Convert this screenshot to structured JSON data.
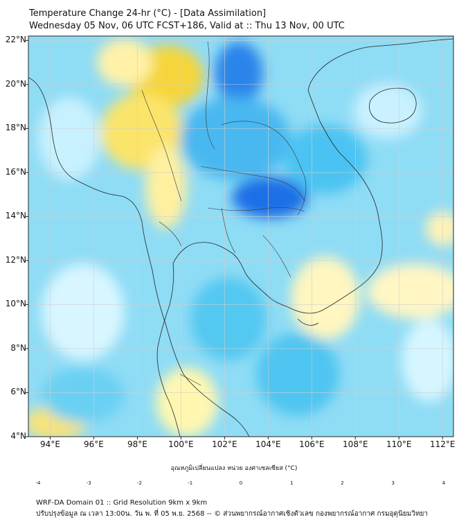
{
  "header": {
    "title_line1": "Temperature Change 24-hr (°C) - [Data Assimilation]",
    "title_line2": "Wednesday 05 Nov, 06 UTC FCST+186, Valid at :: Thu 13 Nov, 00 UTC"
  },
  "map": {
    "y_axis": {
      "labels": [
        "22°N",
        "20°N",
        "18°N",
        "16°N",
        "14°N",
        "12°N",
        "10°N",
        "8°N",
        "6°N",
        "4°N"
      ],
      "values": [
        22,
        20,
        18,
        16,
        14,
        12,
        10,
        8,
        6,
        4
      ]
    },
    "x_axis": {
      "labels": [
        "94°E",
        "96°E",
        "98°E",
        "100°E",
        "102°E",
        "104°E",
        "106°E",
        "108°E",
        "110°E",
        "112°E"
      ],
      "values": [
        94,
        96,
        98,
        100,
        102,
        104,
        106,
        108,
        110,
        112
      ]
    },
    "extent": {
      "lon_min": 93,
      "lon_max": 112.5,
      "lat_min": 4,
      "lat_max": 22.2
    },
    "colors": {
      "cold_strong": "#1a6ee8",
      "cold": "#3ec6f2",
      "cool": "#bfefff",
      "neutral": "#ffffff",
      "warm": "#fff7b0",
      "warm_strong": "#f5d53a"
    }
  },
  "colorbar": {
    "title": "อุณหภูมิเปลี่ยนแปลง หน่วย องศาเซลเซียส (°C)",
    "tick_labels": [
      "-4",
      "-3",
      "-2",
      "-1",
      "0",
      "1",
      "2",
      "3",
      "4"
    ],
    "min": -4,
    "max": 4
  },
  "footer": {
    "line1": "WRF-DA Domain 01 :: Grid Resolution 9km x 9km",
    "line2": "ปรับปรุงข้อมูล ณ เวลา 13:00น. วัน พ. ที่ 05 พ.ย. 2568 -- © ส่วนพยากรณ์อากาศเชิงตัวเลข กองพยากรณ์อากาศ กรมอุตุนิยมวิทยา"
  }
}
